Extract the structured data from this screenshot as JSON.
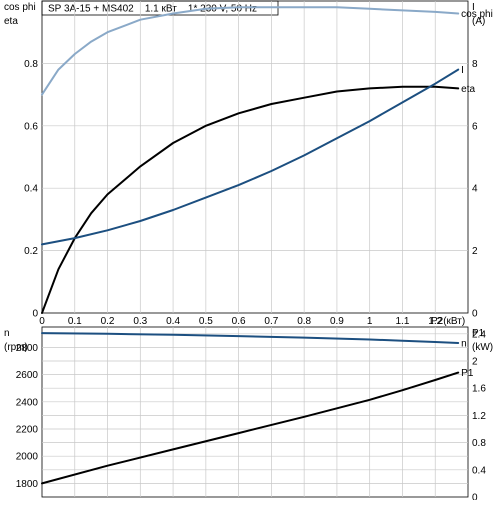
{
  "header": {
    "title": "SP 3A-15 + MS402    1.1 кВт    1* 230 V, 50 Hz"
  },
  "chart_data": [
    {
      "type": "line",
      "title": "SP 3A-15 + MS402    1.1 кВт    1* 230 V, 50 Hz",
      "xlabel": "P2(кВт)",
      "xlim": [
        0,
        1.3
      ],
      "x_ticks": [
        "0",
        "0.1",
        "0.2",
        "0.3",
        "0.4",
        "0.5",
        "0.6",
        "0.7",
        "0.8",
        "0.9",
        "1",
        "1.1",
        "1.2"
      ],
      "ylabel_left": [
        "cos phi",
        "eta"
      ],
      "ylim_left": [
        0,
        1.0
      ],
      "yticks_left": [
        "0",
        "0.2",
        "0.4",
        "0.6",
        "0.8"
      ],
      "ylabel_right": [
        "I",
        "(A)"
      ],
      "ylim_right": [
        0,
        10
      ],
      "yticks_right": [
        "0",
        "2",
        "4",
        "6",
        "8"
      ],
      "grid": true,
      "series": [
        {
          "name": "cos phi",
          "axis": "left",
          "color": "#8aa9c8",
          "x": [
            0,
            0.05,
            0.1,
            0.15,
            0.2,
            0.3,
            0.4,
            0.5,
            0.6,
            0.7,
            0.8,
            0.9,
            1.0,
            1.1,
            1.2,
            1.27
          ],
          "y": [
            0.7,
            0.78,
            0.83,
            0.87,
            0.9,
            0.94,
            0.96,
            0.975,
            0.98,
            0.98,
            0.98,
            0.98,
            0.975,
            0.97,
            0.965,
            0.96
          ]
        },
        {
          "name": "eta",
          "axis": "left",
          "color": "#000000",
          "x": [
            0,
            0.05,
            0.1,
            0.15,
            0.2,
            0.3,
            0.4,
            0.5,
            0.6,
            0.7,
            0.8,
            0.9,
            1.0,
            1.1,
            1.2,
            1.27
          ],
          "y": [
            0.0,
            0.14,
            0.24,
            0.32,
            0.38,
            0.47,
            0.545,
            0.6,
            0.64,
            0.67,
            0.69,
            0.71,
            0.72,
            0.725,
            0.725,
            0.72
          ]
        },
        {
          "name": "I",
          "axis": "right",
          "color": "#1c4f80",
          "x": [
            0,
            0.1,
            0.2,
            0.3,
            0.4,
            0.5,
            0.6,
            0.7,
            0.8,
            0.9,
            1.0,
            1.1,
            1.2,
            1.27
          ],
          "y": [
            2.2,
            2.4,
            2.65,
            2.95,
            3.3,
            3.7,
            4.1,
            4.55,
            5.05,
            5.6,
            6.15,
            6.75,
            7.35,
            7.8
          ]
        }
      ]
    },
    {
      "type": "line",
      "xlim": [
        0,
        1.3
      ],
      "ylabel_left": [
        "n",
        "(rpm)"
      ],
      "ylim_left": [
        1700,
        2950
      ],
      "yticks_left": [
        "1800",
        "2000",
        "2200",
        "2400",
        "2600",
        "2800"
      ],
      "ylabel_right": [
        "P1",
        "(kW)"
      ],
      "ylim_right": [
        0.0,
        2.5
      ],
      "yticks_right": [
        "0",
        "0.4",
        "0.8",
        "1.2",
        "1.6",
        "2",
        "2.4"
      ],
      "grid": true,
      "series": [
        {
          "name": "n",
          "axis": "left",
          "color": "#1c4f80",
          "x": [
            0,
            0.2,
            0.4,
            0.6,
            0.8,
            1.0,
            1.1,
            1.2,
            1.27
          ],
          "y": [
            2905,
            2900,
            2893,
            2883,
            2872,
            2858,
            2849,
            2840,
            2832
          ]
        },
        {
          "name": "P1",
          "axis": "right",
          "color": "#000000",
          "x": [
            0,
            0.2,
            0.4,
            0.6,
            0.8,
            1.0,
            1.1,
            1.2,
            1.27
          ],
          "y": [
            0.2,
            0.46,
            0.7,
            0.94,
            1.18,
            1.43,
            1.57,
            1.72,
            1.83
          ]
        }
      ]
    }
  ]
}
